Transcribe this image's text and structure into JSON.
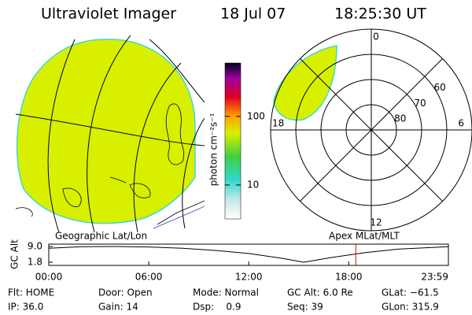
{
  "header": {
    "title": "Ultraviolet Imager",
    "date": "18 Jul 07",
    "time": "18:25:30 UT"
  },
  "colorbar": {
    "label": "photon cm⁻²s⁻¹",
    "scale": "log",
    "clim": [
      3.2,
      600
    ],
    "ticks": [
      10,
      100
    ]
  },
  "polar": {
    "outer_lat": 50,
    "lat_rings": [
      60,
      70,
      80
    ],
    "mlt_ticks": [
      12,
      18,
      6,
      0
    ]
  },
  "orbit": {
    "left_label": "Geographic Lat/Lon",
    "right_label": "Apex MLat/MLT",
    "y_label": "GC Alt",
    "xlim": [
      0,
      23.983
    ],
    "ylim": [
      1.8,
      9.0
    ],
    "yticks": [
      {
        "value": 9.0,
        "label": "9.0"
      },
      {
        "value": 1.8,
        "label": "1.8"
      }
    ],
    "xticks": [
      {
        "value": 0,
        "label": "00:00"
      },
      {
        "value": 6,
        "label": "06:00"
      },
      {
        "value": 12,
        "label": "12:00"
      },
      {
        "value": 18,
        "label": "18:00"
      },
      {
        "value": 23.983,
        "label": "23:59"
      }
    ],
    "x": [
      0,
      2,
      4,
      6,
      8,
      10,
      12,
      14,
      15.3,
      17,
      19,
      21,
      23.983
    ],
    "values": [
      8.2,
      8.9,
      9.0,
      8.8,
      8.2,
      7.2,
      5.8,
      3.6,
      1.8,
      4.0,
      6.2,
      7.8,
      8.9
    ],
    "current_x": 18.425,
    "current_color": "#e00000"
  },
  "footer": {
    "rows": [
      [
        "Flt: HOME",
        "Door: Open",
        "Mode: Normal",
        "GC Alt: 6.0 Re",
        "GLat: −61.5"
      ],
      [
        "IP: 36.0",
        "Gain: 14",
        "Dsp:    0.9",
        "Seq: 39",
        "GLon: 315.9"
      ]
    ]
  }
}
